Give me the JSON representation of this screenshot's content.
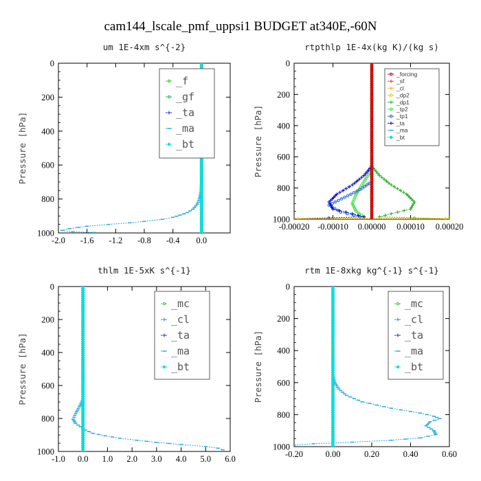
{
  "page_title": "cam144_lscale_pmf_uppsi1  BUDGET at340E,-60N",
  "colors": {
    "f": "#33cc33",
    "gf": "#22bb55",
    "ta": "#2222dd",
    "ma": "#22aadd",
    "bt": "#00e0e0",
    "mc": "#33cc33",
    "cl": "#2288cc",
    "forcing": "#cc0000",
    "sf": "#ff2222",
    "cl_orange": "#ffaa00",
    "dp2": "#ddcc00",
    "dp1": "#22aa22",
    "tp2": "#44dd44",
    "tp1": "#2266cc",
    "ta_blue": "#0000cc"
  },
  "chart_data": [
    {
      "type": "line",
      "title": "um   1E-4xm s^{-2}",
      "ylabel": "Pressure [hPa]",
      "xlim": [
        -2.0,
        0.4
      ],
      "ylim": [
        1000,
        0
      ],
      "xticks": [
        "-2.0",
        "-1.6",
        "-1.2",
        "-0.8",
        "-0.4",
        "0.0"
      ],
      "xtick_values": [
        -2.0,
        -1.6,
        -1.2,
        -0.8,
        -0.4,
        0.0
      ],
      "yticks": [
        "0",
        "200",
        "400",
        "600",
        "800",
        "1000"
      ],
      "ytick_values": [
        0,
        200,
        400,
        600,
        800,
        1000
      ],
      "legend": {
        "position": "top-right",
        "style": "big",
        "entries": [
          "_f",
          "_gf",
          "_ta",
          "_ma",
          "_bt"
        ]
      },
      "series": [
        {
          "name": "_f",
          "color": "#33cc33",
          "marker": "circle",
          "points": [
            [
              0.0,
              0
            ],
            [
              0.0,
              1000
            ]
          ]
        },
        {
          "name": "_gf",
          "color": "#22bb55",
          "marker": "circle",
          "points": [
            [
              0.0,
              0
            ],
            [
              0.0,
              1000
            ]
          ]
        },
        {
          "name": "_ta",
          "color": "#2222dd",
          "marker": "plus",
          "points": [
            [
              0.0,
              0
            ],
            [
              0.0,
              1000
            ]
          ]
        },
        {
          "name": "_ma",
          "color": "#22aadd",
          "marker": "dash",
          "points": [
            [
              0.0,
              0
            ],
            [
              0.0,
              700
            ],
            [
              -0.01,
              760
            ],
            [
              -0.03,
              800
            ],
            [
              -0.06,
              830
            ],
            [
              -0.12,
              860
            ],
            [
              -0.2,
              880
            ],
            [
              -0.3,
              895
            ],
            [
              -0.4,
              908
            ],
            [
              -0.55,
              920
            ],
            [
              -0.8,
              932
            ],
            [
              -1.0,
              940
            ],
            [
              -1.3,
              950
            ],
            [
              -1.6,
              960
            ],
            [
              -1.85,
              975
            ],
            [
              -1.95,
              985
            ],
            [
              -1.8,
              993
            ],
            [
              -1.5,
              997
            ]
          ]
        },
        {
          "name": "_bt",
          "color": "#00e0e0",
          "marker": "diamond",
          "points": [
            [
              0.0,
              0
            ],
            [
              0.0,
              1000
            ]
          ]
        }
      ]
    },
    {
      "type": "line",
      "title": "rtpthlp  1E-4x(kg K)/(kg s)",
      "ylabel": "Pressure [hPa]",
      "xlim": [
        -0.0002,
        0.0002
      ],
      "ylim": [
        1000,
        0
      ],
      "xticks": [
        "-0.00020",
        "-0.00010",
        "0.00000",
        "0.00010",
        "0.00020"
      ],
      "xtick_values": [
        -0.0002,
        -0.0001,
        0.0,
        0.0001,
        0.0002
      ],
      "yticks": [
        "0",
        "200",
        "400",
        "600",
        "800",
        "1000"
      ],
      "ytick_values": [
        0,
        200,
        400,
        600,
        800,
        1000
      ],
      "legend": {
        "position": "top-right",
        "style": "small",
        "entries": [
          "_forcing",
          "_sf",
          "_cl",
          "_dp2",
          "_dp1",
          "_tp2",
          "_tp1",
          "_ta",
          "_ma",
          "_bt"
        ]
      },
      "series": [
        {
          "name": "_dp1",
          "color": "#22aa22",
          "marker": "plus",
          "points": [
            [
              0.0,
              660
            ],
            [
              2e-05,
              720
            ],
            [
              5e-05,
              780
            ],
            [
              9e-05,
              840
            ],
            [
              0.00011,
              890
            ],
            [
              0.0001,
              935
            ],
            [
              5e-05,
              965
            ],
            [
              2e-05,
              985
            ],
            [
              0.0002,
              998
            ]
          ]
        },
        {
          "name": "_tp2",
          "color": "#44dd44",
          "marker": "circle",
          "points": [
            [
              0.0,
              680
            ],
            [
              -2e-05,
              760
            ],
            [
              -4e-05,
              840
            ],
            [
              -5e-05,
              900
            ],
            [
              -4e-05,
              950
            ],
            [
              -2e-05,
              985
            ]
          ]
        },
        {
          "name": "_tp1",
          "color": "#2266cc",
          "marker": "circle",
          "points": [
            [
              0.0,
              760
            ],
            [
              -3e-05,
              810
            ],
            [
              -7e-05,
              860
            ],
            [
              -0.00011,
              910
            ],
            [
              -8e-05,
              955
            ],
            [
              -3e-05,
              985
            ]
          ]
        },
        {
          "name": "_ta",
          "color": "#0000cc",
          "marker": "plus",
          "points": [
            [
              0.0,
              660
            ],
            [
              -2e-05,
              720
            ],
            [
              -5e-05,
              780
            ],
            [
              -9e-05,
              840
            ],
            [
              -0.00011,
              890
            ],
            [
              -0.0001,
              935
            ],
            [
              -5e-05,
              965
            ],
            [
              -2e-05,
              985
            ],
            [
              -0.0002,
              998
            ]
          ]
        },
        {
          "name": "_dp2",
          "color": "#ddcc00",
          "marker": "circle",
          "points": [
            [
              -0.0002,
              995
            ],
            [
              0.0002,
              995
            ]
          ]
        },
        {
          "name": "_cl",
          "color": "#ffaa00",
          "marker": "plus",
          "points": [
            [
              -0.00019,
              998
            ],
            [
              0.00019,
              998
            ]
          ]
        },
        {
          "name": "_ma",
          "color": "#22aadd",
          "marker": "dash",
          "points": [
            [
              0.0,
              0
            ],
            [
              0.0,
              1000
            ]
          ]
        },
        {
          "name": "_bt",
          "color": "#00e0e0",
          "marker": "diamond",
          "points": [
            [
              0.0,
              0
            ],
            [
              0.0,
              1000
            ]
          ]
        },
        {
          "name": "_sf",
          "color": "#ff2222",
          "marker": "plus",
          "points": [
            [
              0.0,
              0
            ],
            [
              0.0,
              1000
            ]
          ]
        },
        {
          "name": "_forcing",
          "color": "#cc0000",
          "marker": "circle",
          "points": [
            [
              0.0,
              0
            ],
            [
              0.0,
              1000
            ]
          ]
        }
      ]
    },
    {
      "type": "line",
      "title": "thlm   1E-5xK s^{-1}",
      "ylabel": "Pressure [hPa]",
      "xlim": [
        -1.0,
        6.0
      ],
      "ylim": [
        1000,
        0
      ],
      "xticks": [
        "-1.0",
        "0.0",
        "1.0",
        "2.0",
        "3.0",
        "4.0",
        "5.0",
        "6.0"
      ],
      "xtick_values": [
        -1.0,
        0.0,
        1.0,
        2.0,
        3.0,
        4.0,
        5.0,
        6.0
      ],
      "yticks": [
        "0",
        "200",
        "400",
        "600",
        "800",
        "1000"
      ],
      "ytick_values": [
        0,
        200,
        400,
        600,
        800,
        1000
      ],
      "legend": {
        "position": "top-right",
        "style": "big",
        "entries": [
          "_mc",
          "_cl",
          "_ta",
          "_ma",
          "_bt"
        ]
      },
      "series": [
        {
          "name": "_mc",
          "color": "#33cc33",
          "marker": "circle",
          "points": [
            [
              0.0,
              0
            ],
            [
              0.0,
              1000
            ]
          ]
        },
        {
          "name": "_cl",
          "color": "#2288cc",
          "marker": "plus",
          "points": [
            [
              0.0,
              0
            ],
            [
              0.0,
              1000
            ]
          ]
        },
        {
          "name": "_ta",
          "color": "#2222dd",
          "marker": "plus",
          "points": [
            [
              0.0,
              0
            ],
            [
              0.0,
              1000
            ]
          ]
        },
        {
          "name": "_ma",
          "color": "#22aadd",
          "marker": "dash",
          "points": [
            [
              0.0,
              0
            ],
            [
              0.0,
              680
            ],
            [
              -0.05,
              700
            ],
            [
              -0.15,
              730
            ],
            [
              -0.3,
              770
            ],
            [
              -0.4,
              805
            ],
            [
              -0.3,
              830
            ],
            [
              -0.1,
              850
            ],
            [
              0.1,
              870
            ],
            [
              0.4,
              890
            ],
            [
              0.9,
              905
            ],
            [
              1.5,
              920
            ],
            [
              2.2,
              932
            ],
            [
              3.0,
              945
            ],
            [
              4.0,
              958
            ],
            [
              5.0,
              970
            ],
            [
              5.5,
              980
            ],
            [
              5.7,
              990
            ]
          ]
        },
        {
          "name": "_bt",
          "color": "#00e0e0",
          "marker": "diamond",
          "points": [
            [
              0.0,
              0
            ],
            [
              0.0,
              1000
            ]
          ]
        }
      ]
    },
    {
      "type": "line",
      "title": "rtm   1E-8xkg kg^{-1} s^{-1}",
      "ylabel": "Pressure [hPa]",
      "xlim": [
        -0.2,
        0.6
      ],
      "ylim": [
        1000,
        0
      ],
      "xticks": [
        "-0.20",
        "0.00",
        "0.20",
        "0.40",
        "0.60"
      ],
      "xtick_values": [
        -0.2,
        0.0,
        0.2,
        0.4,
        0.6
      ],
      "yticks": [
        "0",
        "200",
        "400",
        "600",
        "800",
        "1000"
      ],
      "ytick_values": [
        0,
        200,
        400,
        600,
        800,
        1000
      ],
      "legend": {
        "position": "top-right",
        "style": "big",
        "entries": [
          "_mc",
          "_cl",
          "_ta",
          "_ma",
          "_bt"
        ]
      },
      "series": [
        {
          "name": "_mc",
          "color": "#33cc33",
          "marker": "circle",
          "points": [
            [
              0.0,
              0
            ],
            [
              0.0,
              1000
            ]
          ]
        },
        {
          "name": "_cl",
          "color": "#2288cc",
          "marker": "plus",
          "points": [
            [
              0.0,
              0
            ],
            [
              0.0,
              1000
            ]
          ]
        },
        {
          "name": "_ta",
          "color": "#2222dd",
          "marker": "plus",
          "points": [
            [
              0.0,
              0
            ],
            [
              0.0,
              1000
            ]
          ]
        },
        {
          "name": "_ma",
          "color": "#22aadd",
          "marker": "dash",
          "points": [
            [
              0.0,
              0
            ],
            [
              0.0,
              560
            ],
            [
              0.01,
              600
            ],
            [
              0.03,
              640
            ],
            [
              0.07,
              680
            ],
            [
              0.15,
              720
            ],
            [
              0.3,
              760
            ],
            [
              0.45,
              790
            ],
            [
              0.52,
              810
            ],
            [
              0.55,
              825
            ],
            [
              0.5,
              845
            ],
            [
              0.48,
              870
            ],
            [
              0.52,
              900
            ],
            [
              0.53,
              925
            ],
            [
              0.45,
              945
            ],
            [
              0.3,
              960
            ],
            [
              0.1,
              972
            ],
            [
              -0.1,
              982
            ],
            [
              -0.2,
              990
            ]
          ]
        },
        {
          "name": "_bt",
          "color": "#00e0e0",
          "marker": "diamond",
          "points": [
            [
              0.0,
              0
            ],
            [
              0.0,
              1000
            ]
          ]
        }
      ]
    }
  ]
}
